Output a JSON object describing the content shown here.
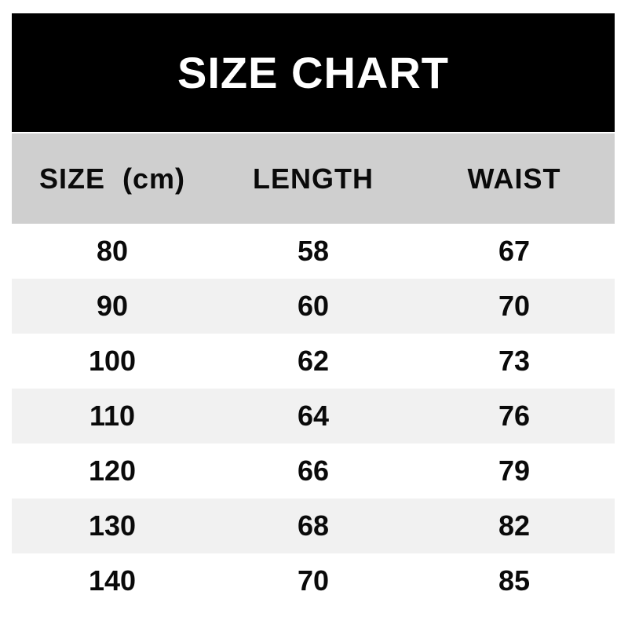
{
  "title": "SIZE CHART",
  "colors": {
    "page_bg": "#ffffff",
    "title_bg": "#000000",
    "title_text": "#ffffff",
    "header_bg": "#cfcfcf",
    "row_alt_bg": "#f1f1f1",
    "text": "#0a0a0a"
  },
  "table": {
    "headers": [
      "SIZE  (cm)",
      "LENGTH",
      "WAIST"
    ],
    "rows": [
      {
        "size": "80",
        "length": "58",
        "waist": "67"
      },
      {
        "size": "90",
        "length": "60",
        "waist": "70"
      },
      {
        "size": "100",
        "length": "62",
        "waist": "73"
      },
      {
        "size": "110",
        "length": "64",
        "waist": "76"
      },
      {
        "size": "120",
        "length": "66",
        "waist": "79"
      },
      {
        "size": "130",
        "length": "68",
        "waist": "82"
      },
      {
        "size": "140",
        "length": "70",
        "waist": "85"
      }
    ]
  },
  "chart_data": {
    "type": "table",
    "title": "SIZE CHART",
    "columns": [
      "SIZE (cm)",
      "LENGTH",
      "WAIST"
    ],
    "rows": [
      [
        80,
        58,
        67
      ],
      [
        90,
        60,
        70
      ],
      [
        100,
        62,
        73
      ],
      [
        110,
        64,
        76
      ],
      [
        120,
        66,
        79
      ],
      [
        130,
        68,
        82
      ],
      [
        140,
        70,
        85
      ]
    ],
    "layout_hints": {
      "row_striping": "white / light-gray alternating",
      "title_style": "white bold text on black band",
      "header_style": "black bold text on gray band",
      "alignment": "all cells center-aligned, 3 equal columns"
    }
  }
}
